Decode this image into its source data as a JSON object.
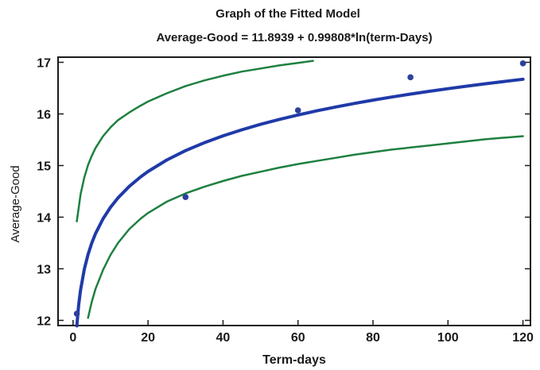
{
  "chart_data": {
    "type": "line",
    "title": "Graph of the Fitted Model",
    "subtitle": "Average-Good = 11.8939 + 0.99808*ln(term-Days)",
    "xlabel": "Term-days",
    "ylabel": "Average-Good",
    "xlim": [
      -4,
      122
    ],
    "ylim": [
      11.9,
      17.1
    ],
    "xticks": [
      0,
      20,
      40,
      60,
      80,
      100,
      120
    ],
    "xtick_labels": [
      "0",
      "20",
      "40",
      "60",
      "80",
      "100",
      "120"
    ],
    "yticks": [
      12,
      13,
      14,
      15,
      16,
      17
    ],
    "ytick_labels": [
      "12",
      "13",
      "14",
      "15",
      "16",
      "17"
    ],
    "grid": false,
    "model": {
      "intercept": 11.8939,
      "slope": 0.99808,
      "transform": "ln"
    },
    "series": [
      {
        "role": "fitted",
        "color": "#1f3aa8",
        "x": [
          1,
          1.5,
          2,
          3,
          4,
          5,
          6,
          8,
          10,
          12,
          15,
          18,
          20,
          25,
          30,
          35,
          40,
          45,
          50,
          55,
          60,
          65,
          70,
          75,
          80,
          85,
          90,
          95,
          100,
          105,
          110,
          115,
          120
        ],
        "y": [
          11.894,
          12.299,
          12.586,
          12.991,
          13.277,
          13.5,
          13.682,
          13.969,
          14.192,
          14.374,
          14.597,
          14.779,
          14.884,
          15.107,
          15.289,
          15.442,
          15.576,
          15.693,
          15.798,
          15.894,
          15.98,
          16.06,
          16.134,
          16.203,
          16.267,
          16.328,
          16.385,
          16.439,
          16.49,
          16.539,
          16.585,
          16.63,
          16.672
        ]
      },
      {
        "role": "upper-limit",
        "color": "#1e8040",
        "x": [
          1,
          2,
          3,
          4,
          5,
          6,
          8,
          10,
          12,
          15,
          18,
          20,
          25,
          30,
          35,
          40,
          45,
          50,
          55,
          60,
          64
        ],
        "y": [
          13.92,
          14.44,
          14.77,
          15.01,
          15.19,
          15.34,
          15.57,
          15.74,
          15.88,
          16.03,
          16.16,
          16.24,
          16.4,
          16.54,
          16.65,
          16.74,
          16.82,
          16.88,
          16.94,
          16.99,
          17.03
        ]
      },
      {
        "role": "lower-limit",
        "color": "#1e8040",
        "x": [
          4,
          5,
          6,
          8,
          10,
          12,
          15,
          18,
          20,
          25,
          30,
          35,
          40,
          45,
          50,
          55,
          60,
          65,
          70,
          75,
          80,
          85,
          90,
          95,
          100,
          105,
          110,
          115,
          120
        ],
        "y": [
          12.05,
          12.36,
          12.61,
          12.98,
          13.27,
          13.5,
          13.77,
          13.97,
          14.08,
          14.3,
          14.46,
          14.59,
          14.7,
          14.8,
          14.88,
          14.96,
          15.03,
          15.09,
          15.15,
          15.21,
          15.26,
          15.31,
          15.35,
          15.39,
          15.43,
          15.47,
          15.51,
          15.54,
          15.57
        ]
      },
      {
        "role": "observed",
        "color": "#2e3f9e",
        "x": [
          1,
          30,
          60,
          90,
          120
        ],
        "y": [
          12.13,
          14.39,
          16.07,
          16.71,
          16.98
        ]
      }
    ]
  }
}
